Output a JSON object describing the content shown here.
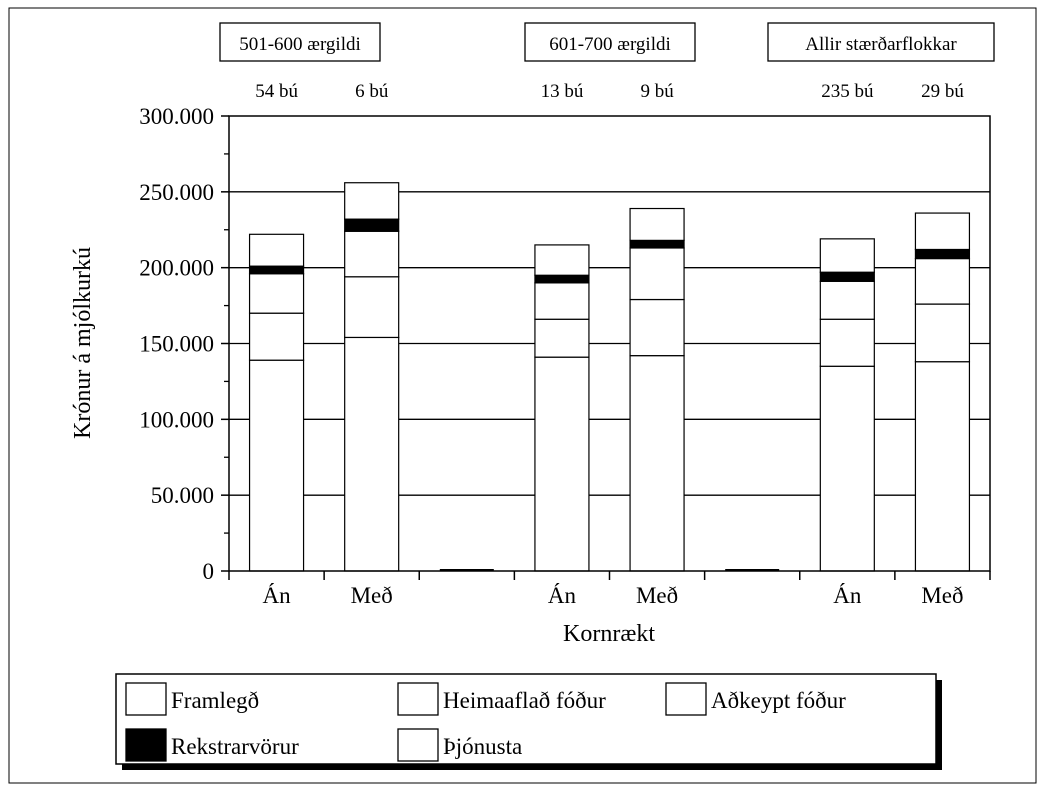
{
  "chart_data": {
    "type": "bar",
    "stacked": true,
    "y_axis_label": "Krónur á mjólkurkú",
    "x_axis_label": "Kornrækt",
    "ylim": [
      0,
      300000
    ],
    "y_ticks": [
      "0",
      "50.000",
      "100.000",
      "150.000",
      "200.000",
      "250.000",
      "300.000"
    ],
    "grid": true,
    "legend_position": "bottom",
    "groups": [
      {
        "title": "501-600 ærgildi"
      },
      {
        "title": "601-700 ærgildi"
      },
      {
        "title": "Allir stærðarflokkar"
      }
    ],
    "categories": [
      "Án",
      "Með",
      "",
      "Án",
      "Með",
      "",
      "Án",
      "Með"
    ],
    "farm_counts": [
      "54 bú",
      "6 bú",
      "",
      "13 bú",
      "9 bú",
      "",
      "235 bú",
      "29 bú"
    ],
    "series": [
      {
        "name": "Framlegð",
        "color": "#ffffff",
        "values": [
          139000,
          154000,
          0,
          141000,
          142000,
          0,
          135000,
          138000
        ]
      },
      {
        "name": "Þjónusta",
        "color": "#ffffff",
        "values": [
          31000,
          40000,
          0,
          25000,
          37000,
          0,
          31000,
          38000
        ]
      },
      {
        "name": "Heimaaflað fóður",
        "color": "#ffffff",
        "values": [
          26000,
          30000,
          0,
          24000,
          34000,
          0,
          25000,
          30000
        ]
      },
      {
        "name": "Rekstrarvörur",
        "color": "#000000",
        "values": [
          5000,
          8000,
          0,
          5000,
          5000,
          0,
          6000,
          6000
        ]
      },
      {
        "name": "Aðkeypt fóður",
        "color": "#ffffff",
        "values": [
          21000,
          24000,
          0,
          20000,
          21000,
          0,
          22000,
          24000
        ]
      }
    ],
    "legend": [
      {
        "name": "Framlegð",
        "color": "#ffffff"
      },
      {
        "name": "Heimaaflað fóður",
        "color": "#ffffff"
      },
      {
        "name": "Aðkeypt fóður",
        "color": "#ffffff"
      },
      {
        "name": "Rekstrarvörur",
        "color": "#000000"
      },
      {
        "name": "Þjónusta",
        "color": "#ffffff"
      }
    ]
  }
}
